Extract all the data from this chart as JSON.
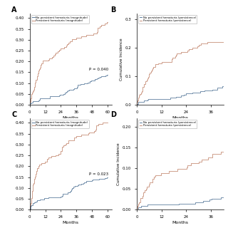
{
  "background": "#ffffff",
  "blue_color": "#6080A0",
  "orange_color": "#C8907A",
  "legend_A": [
    "No persistent hematuria (magnitude)",
    "Persistent hematuria (magnitude)"
  ],
  "legend_B": [
    "No persistent hematuria (persistence)",
    "Persistent hematuria (persistence)"
  ],
  "legend_C": [
    "No persistent hematuria (magnitude)",
    "Persistent hematuria (magnitude)"
  ],
  "legend_D": [
    "No persistent hematuria (persistence)",
    "Persistent hematuria (persistence)"
  ],
  "p_A": "P = 0.040",
  "p_C": "P = 0.023",
  "xlabel": "Months",
  "ylabel_right": "Cumulative Incidence",
  "xlim_left": [
    0,
    63
  ],
  "xlim_right": [
    0,
    42
  ],
  "ylim_A": [
    0,
    0.42
  ],
  "ylim_C": [
    0,
    0.42
  ],
  "ylim_B": [
    0,
    0.32
  ],
  "ylim_D": [
    0,
    0.22
  ]
}
